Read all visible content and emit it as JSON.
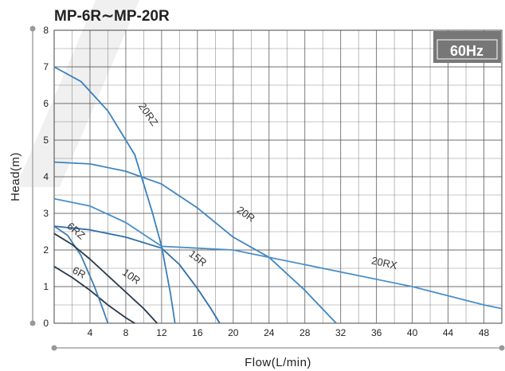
{
  "chart_data": {
    "type": "line",
    "title": "MP-6R∼MP-20R",
    "xlabel": "Flow(L/min)",
    "ylabel": "Head(m)",
    "badge": "60Hz",
    "xlim": [
      0,
      50
    ],
    "ylim": [
      0,
      8
    ],
    "x_ticks": [
      0,
      4,
      8,
      12,
      16,
      20,
      24,
      28,
      32,
      36,
      40,
      44,
      48
    ],
    "y_ticks": [
      0,
      1,
      2,
      3,
      4,
      5,
      6,
      7,
      8
    ],
    "grid": true,
    "series": [
      {
        "name": "6R",
        "points": [
          [
            0,
            1.55
          ],
          [
            2,
            1.25
          ],
          [
            4,
            0.9
          ],
          [
            6,
            0.5
          ],
          [
            8,
            0.15
          ],
          [
            9,
            0
          ]
        ]
      },
      {
        "name": "6RZ",
        "points": [
          [
            0,
            2.65
          ],
          [
            1.5,
            2.4
          ],
          [
            3,
            1.85
          ],
          [
            4.5,
            1.0
          ],
          [
            5.5,
            0.35
          ],
          [
            6,
            0
          ]
        ]
      },
      {
        "name": "10R",
        "points": [
          [
            0,
            2.45
          ],
          [
            2,
            2.15
          ],
          [
            4,
            1.75
          ],
          [
            6,
            1.3
          ],
          [
            8,
            0.85
          ],
          [
            10,
            0.4
          ],
          [
            11.5,
            0
          ]
        ]
      },
      {
        "name": "15R",
        "points": [
          [
            0,
            2.65
          ],
          [
            4,
            2.55
          ],
          [
            8,
            2.35
          ],
          [
            12,
            2.05
          ],
          [
            14,
            1.6
          ],
          [
            16,
            0.95
          ],
          [
            17.5,
            0.4
          ],
          [
            18.5,
            0
          ]
        ]
      },
      {
        "name": "20R",
        "points": [
          [
            0,
            4.4
          ],
          [
            4,
            4.35
          ],
          [
            8,
            4.15
          ],
          [
            12,
            3.8
          ],
          [
            16,
            3.15
          ],
          [
            20,
            2.35
          ],
          [
            24,
            1.8
          ],
          [
            28,
            0.9
          ],
          [
            31.5,
            0
          ]
        ]
      },
      {
        "name": "20RX",
        "points": [
          [
            0,
            3.4
          ],
          [
            4,
            3.2
          ],
          [
            8,
            2.75
          ],
          [
            12,
            2.1
          ],
          [
            16,
            2.05
          ],
          [
            20,
            2.0
          ],
          [
            24,
            1.8
          ],
          [
            32,
            1.4
          ],
          [
            40,
            1.0
          ],
          [
            48,
            0.5
          ],
          [
            50,
            0.4
          ]
        ]
      },
      {
        "name": "20RZ",
        "points": [
          [
            0,
            7.0
          ],
          [
            3,
            6.6
          ],
          [
            6,
            5.8
          ],
          [
            9,
            4.6
          ],
          [
            11,
            3.0
          ],
          [
            12,
            2.1
          ],
          [
            13,
            0.8
          ],
          [
            13.5,
            0
          ]
        ]
      }
    ]
  }
}
